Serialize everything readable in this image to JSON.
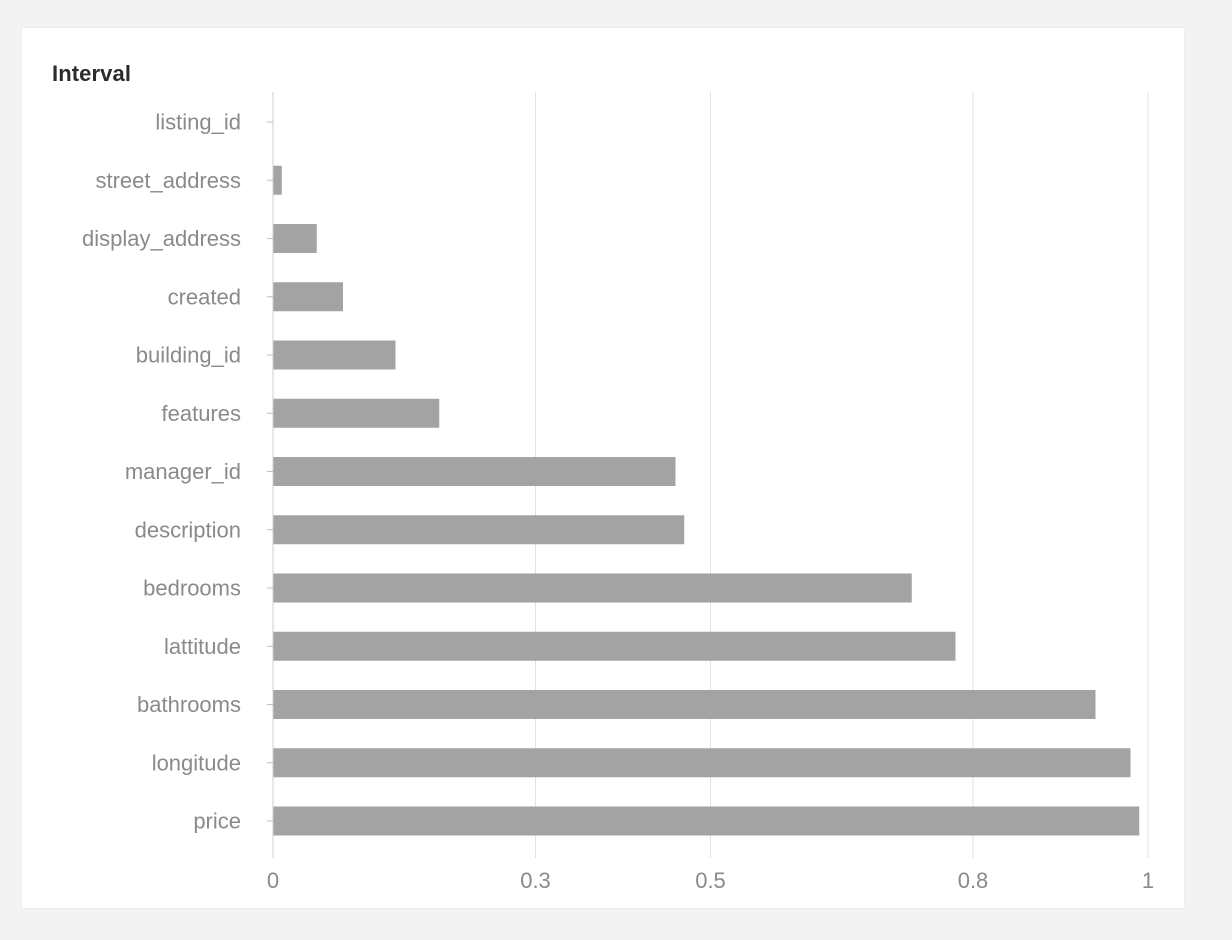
{
  "title": "Interval",
  "chart_data": {
    "type": "bar",
    "orientation": "horizontal",
    "categories": [
      "listing_id",
      "street_address",
      "display_address",
      "created",
      "building_id",
      "features",
      "manager_id",
      "description",
      "bedrooms",
      "lattitude",
      "bathrooms",
      "longitude",
      "price"
    ],
    "values": [
      0.0,
      0.01,
      0.05,
      0.08,
      0.14,
      0.19,
      0.46,
      0.47,
      0.73,
      0.78,
      0.94,
      0.98,
      0.99
    ],
    "xticks": [
      0,
      0.3,
      0.5,
      0.8,
      1
    ],
    "xtick_labels": [
      "0",
      "0.3",
      "0.5",
      "0.8",
      "1"
    ],
    "xlim": [
      0,
      1
    ],
    "grid": true,
    "bar_color": "#a3a3a3",
    "title": "Interval",
    "xlabel": "",
    "ylabel": ""
  }
}
